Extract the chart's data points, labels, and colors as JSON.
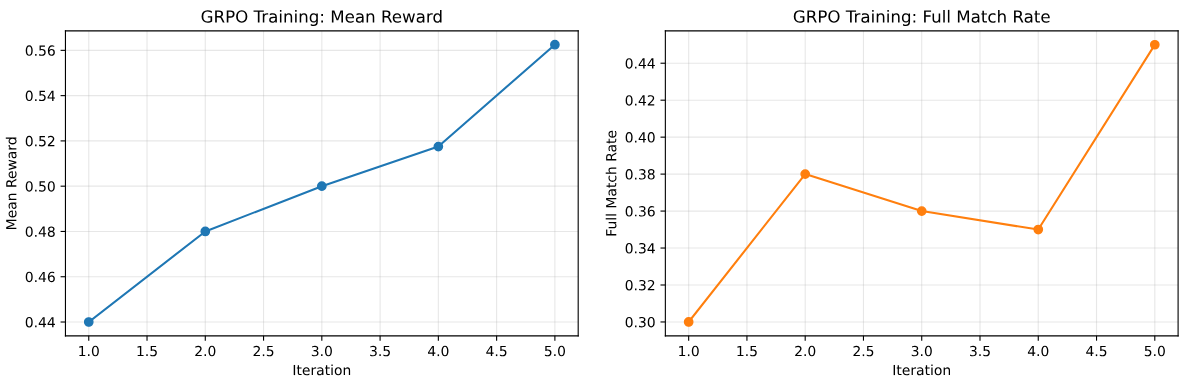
{
  "chart_data": [
    {
      "type": "line",
      "title": "GRPO Training: Mean Reward",
      "xlabel": "Iteration",
      "ylabel": "Mean Reward",
      "x": [
        1,
        2,
        3,
        4,
        5
      ],
      "series": [
        {
          "color": "#1f77b4",
          "values": [
            0.44,
            0.48,
            0.5,
            0.5175,
            0.5625
          ]
        }
      ],
      "xlim": [
        0.8,
        5.2
      ],
      "xticks": [
        {
          "value": 1,
          "label": "1.0"
        },
        {
          "value": 1.5,
          "label": "1.5"
        },
        {
          "value": 2,
          "label": "2.0"
        },
        {
          "value": 2.5,
          "label": "2.5"
        },
        {
          "value": 3,
          "label": "3.0"
        },
        {
          "value": 3.5,
          "label": "3.5"
        },
        {
          "value": 4,
          "label": "4.0"
        },
        {
          "value": 4.5,
          "label": "4.5"
        },
        {
          "value": 5,
          "label": "5.0"
        }
      ],
      "ylim": [
        0.4339,
        0.5686
      ],
      "yticks": [
        0.44,
        0.46,
        {
          "value": 0.48,
          "label": "0.48"
        },
        {
          "value": 0.5,
          "label": "0.50"
        },
        0.52,
        0.54,
        0.56
      ],
      "grid": true,
      "marker": "circle",
      "line_style": "solid"
    },
    {
      "type": "line",
      "title": "GRPO Training: Full Match Rate",
      "xlabel": "Iteration",
      "ylabel": "Full Match Rate",
      "x": [
        1,
        2,
        3,
        4,
        5
      ],
      "series": [
        {
          "color": "#ff7f0e",
          "values": [
            0.3,
            0.38,
            0.36,
            0.35,
            0.45
          ]
        }
      ],
      "xlim": [
        0.8,
        5.2
      ],
      "xticks": [
        {
          "value": 1,
          "label": "1.0"
        },
        {
          "value": 1.5,
          "label": "1.5"
        },
        {
          "value": 2,
          "label": "2.0"
        },
        {
          "value": 2.5,
          "label": "2.5"
        },
        {
          "value": 3,
          "label": "3.0"
        },
        {
          "value": 3.5,
          "label": "3.5"
        },
        {
          "value": 4,
          "label": "4.0"
        },
        {
          "value": 4.5,
          "label": "4.5"
        },
        {
          "value": 5,
          "label": "5.0"
        }
      ],
      "ylim": [
        0.2925,
        0.4575
      ],
      "yticks": [
        {
          "value": 0.3,
          "label": "0.30"
        },
        0.32,
        0.34,
        0.36,
        0.38,
        {
          "value": 0.4,
          "label": "0.40"
        },
        0.42,
        0.44
      ],
      "grid": true,
      "marker": "circle",
      "line_style": "solid"
    }
  ]
}
